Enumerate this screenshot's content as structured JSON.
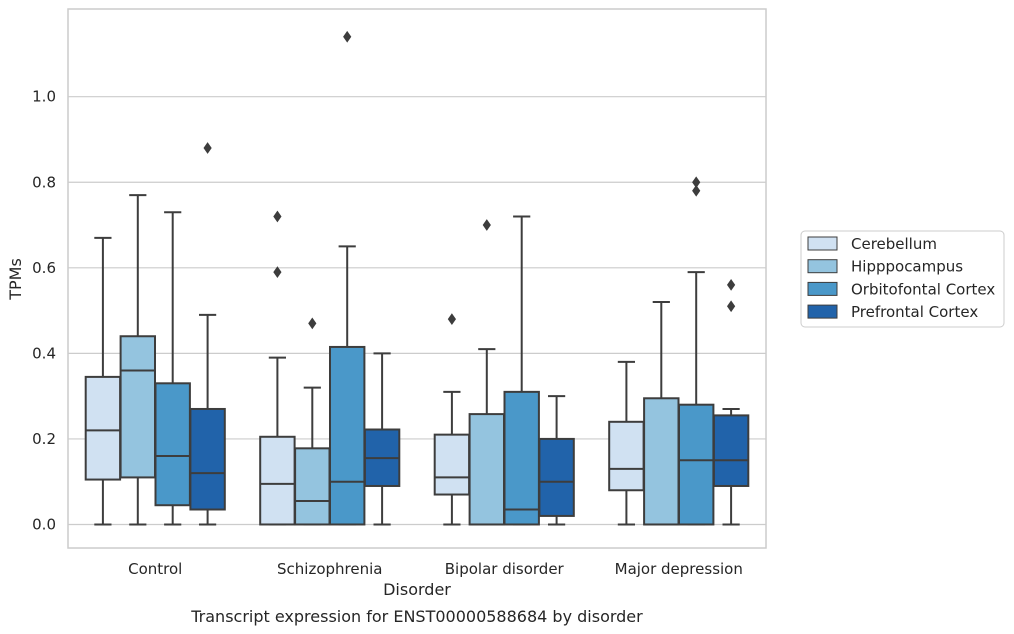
{
  "chart_data": {
    "type": "box",
    "title": "",
    "caption": "Transcript expression for ENST00000588684 by disorder",
    "xlabel": "Disorder",
    "ylabel": "TPMs",
    "ylim": [
      -0.055,
      1.205
    ],
    "yticks": [
      "0.0",
      "0.2",
      "0.4",
      "0.6",
      "0.8",
      "1.0"
    ],
    "ytick_values": [
      0.0,
      0.2,
      0.4,
      0.6,
      0.8,
      1.0
    ],
    "categories": [
      "Control",
      "Schizophrenia",
      "Bipolar disorder",
      "Major depression"
    ],
    "grid": "horizontal",
    "legend_position": "right",
    "series": [
      {
        "name": "Cerebellum",
        "color": "#d0e1f2",
        "boxes": [
          {
            "min": 0.0,
            "q1": 0.105,
            "median": 0.22,
            "q3": 0.345,
            "max": 0.67,
            "outliers": []
          },
          {
            "min": 0.0,
            "q1": 0.0,
            "median": 0.095,
            "q3": 0.205,
            "max": 0.39,
            "outliers": [
              0.59,
              0.72
            ]
          },
          {
            "min": 0.0,
            "q1": 0.07,
            "median": 0.11,
            "q3": 0.21,
            "max": 0.31,
            "outliers": [
              0.48
            ]
          },
          {
            "min": 0.0,
            "q1": 0.08,
            "median": 0.13,
            "q3": 0.24,
            "max": 0.38,
            "outliers": []
          }
        ]
      },
      {
        "name": "Hipppocampus",
        "color": "#94c4df",
        "boxes": [
          {
            "min": 0.0,
            "q1": 0.11,
            "median": 0.36,
            "q3": 0.44,
            "max": 0.77,
            "outliers": []
          },
          {
            "min": 0.0,
            "q1": 0.0,
            "median": 0.055,
            "q3": 0.178,
            "max": 0.32,
            "outliers": [
              0.47
            ]
          },
          {
            "min": 0.0,
            "q1": 0.0,
            "median": 0.0,
            "q3": 0.258,
            "max": 0.41,
            "outliers": [
              0.7
            ]
          },
          {
            "min": 0.0,
            "q1": 0.0,
            "median": 0.0,
            "q3": 0.295,
            "max": 0.52,
            "outliers": []
          }
        ]
      },
      {
        "name": "Orbitofontal Cortex",
        "color": "#4a98c9",
        "boxes": [
          {
            "min": 0.0,
            "q1": 0.045,
            "median": 0.16,
            "q3": 0.33,
            "max": 0.73,
            "outliers": []
          },
          {
            "min": 0.0,
            "q1": 0.0,
            "median": 0.1,
            "q3": 0.415,
            "max": 0.65,
            "outliers": [
              1.14
            ]
          },
          {
            "min": 0.0,
            "q1": 0.0,
            "median": 0.035,
            "q3": 0.31,
            "max": 0.72,
            "outliers": []
          },
          {
            "min": 0.0,
            "q1": 0.0,
            "median": 0.15,
            "q3": 0.28,
            "max": 0.59,
            "outliers": [
              0.78,
              0.8
            ]
          }
        ]
      },
      {
        "name": "Prefrontal Cortex",
        "color": "#2163aa",
        "boxes": [
          {
            "min": 0.0,
            "q1": 0.035,
            "median": 0.12,
            "q3": 0.27,
            "max": 0.49,
            "outliers": [
              0.88
            ]
          },
          {
            "min": 0.0,
            "q1": 0.09,
            "median": 0.155,
            "q3": 0.222,
            "max": 0.4,
            "outliers": []
          },
          {
            "min": 0.0,
            "q1": 0.02,
            "median": 0.1,
            "q3": 0.2,
            "max": 0.3,
            "outliers": []
          },
          {
            "min": 0.0,
            "q1": 0.09,
            "median": 0.15,
            "q3": 0.255,
            "max": 0.27,
            "outliers": [
              0.51,
              0.56
            ]
          }
        ]
      }
    ]
  }
}
